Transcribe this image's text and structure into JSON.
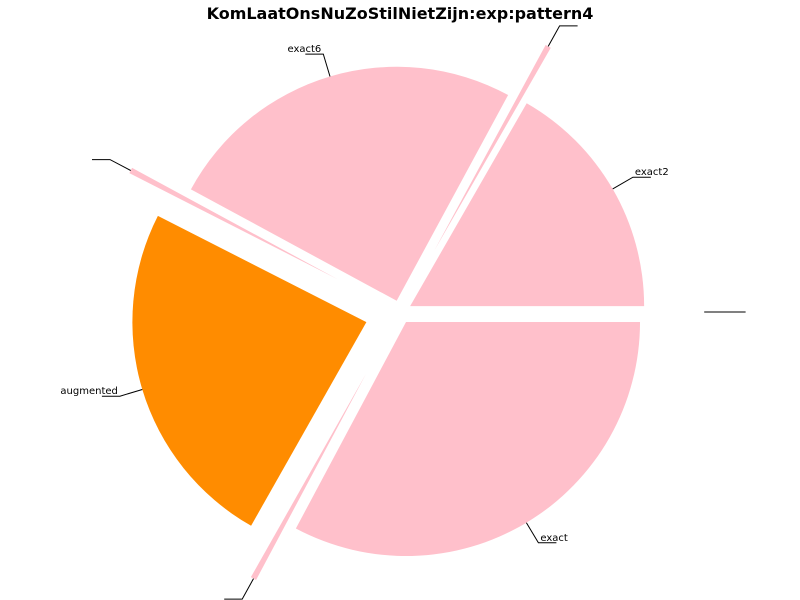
{
  "chart_data": {
    "type": "pie",
    "title": "KomLaatOnsNuZoStilNietZijn:exp:pattern4",
    "start_angle_deg": 0,
    "direction": "counterclockwise",
    "slices": [
      {
        "label": "exact2",
        "value": 16.7,
        "color": "#ffc0cb",
        "explode": 0.05
      },
      {
        "label": "",
        "value": 0.4,
        "color": "#ffc0cb",
        "explode": 0.3
      },
      {
        "label": "exact6",
        "value": 25.0,
        "color": "#ffc0cb",
        "explode": 0.05
      },
      {
        "label": "",
        "value": 0.4,
        "color": "#ffc0cb",
        "explode": 0.3
      },
      {
        "label": "augmented",
        "value": 24.3,
        "color": "#ff8c00",
        "explode": 0.15
      },
      {
        "label": "",
        "value": 0.4,
        "color": "#ffc0cb",
        "explode": 0.3
      },
      {
        "label": "exact",
        "value": 32.8,
        "color": "#ffc0cb",
        "explode": 0.05
      },
      {
        "label": "",
        "value": 0.0,
        "color": "#ffc0cb",
        "explode": 0.3
      }
    ]
  }
}
